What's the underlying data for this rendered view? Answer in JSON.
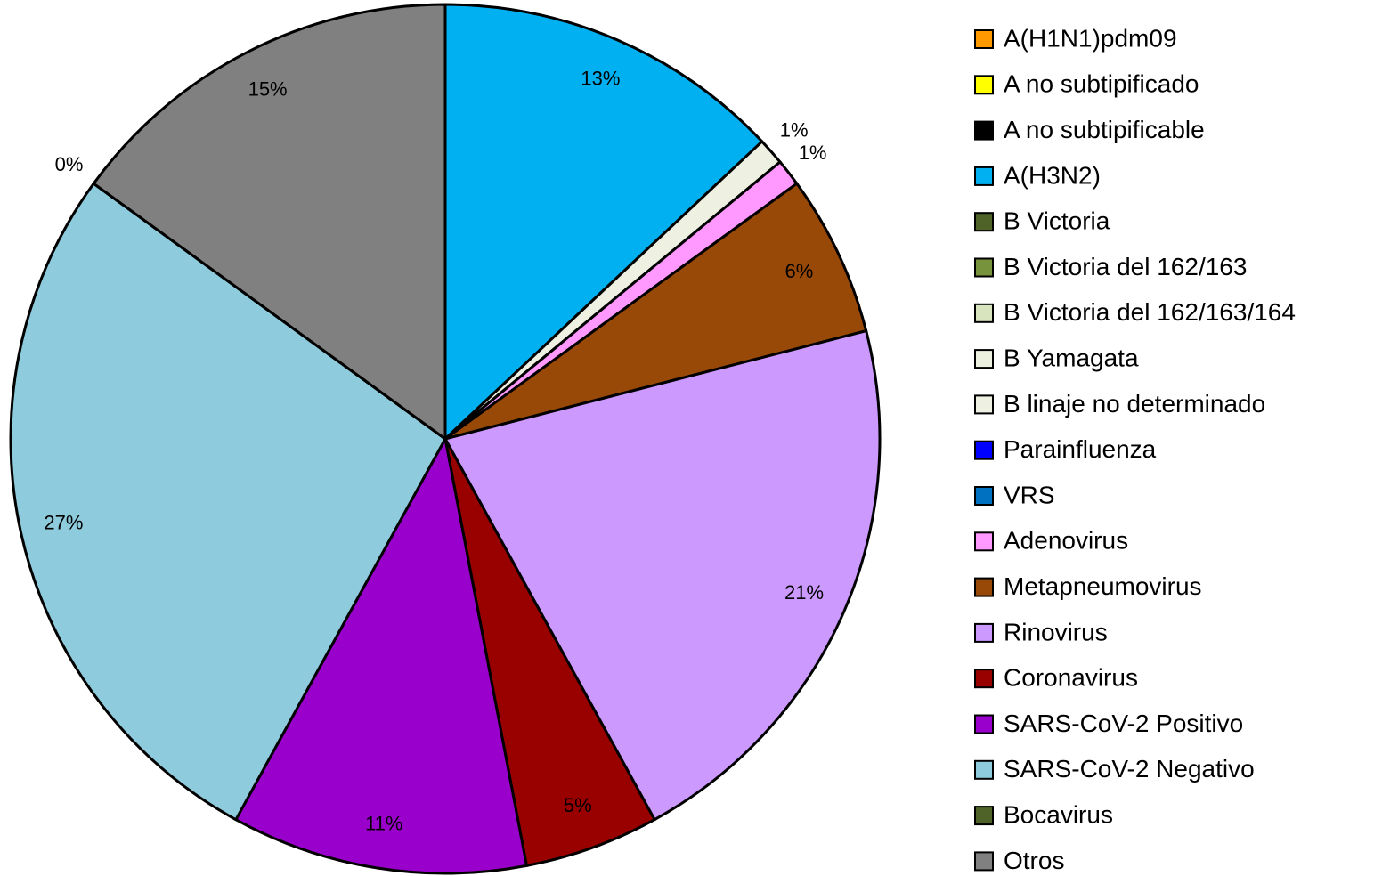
{
  "chart_data": {
    "type": "pie",
    "categories": [
      "A(H1N1)pdm09",
      "A no subtipificado",
      "A no subtipificable",
      "A(H3N2)",
      "B Victoria",
      "B Victoria del 162/163",
      "B Victoria del 162/163/164",
      "B Yamagata",
      "B linaje no determinado",
      "Parainfluenza",
      "VRS",
      "Adenovirus",
      "Metapneumovirus",
      "Rinovirus",
      "Coronavirus",
      "SARS-CoV-2 Positivo",
      "SARS-CoV-2 Negativo",
      "Bocavirus",
      "Otros"
    ],
    "values": [
      null,
      null,
      null,
      13,
      null,
      null,
      null,
      null,
      1,
      null,
      null,
      1,
      6,
      21,
      5,
      11,
      27,
      0,
      15
    ],
    "value_labels": [
      null,
      null,
      null,
      "13%",
      null,
      null,
      null,
      null,
      "1%",
      null,
      null,
      "1%",
      "6%",
      "21%",
      "5%",
      "11%",
      "27%",
      "0%",
      "15%"
    ],
    "colors": [
      "#ff9900",
      "#ffff00",
      "#000000",
      "#00b0f0",
      "#4f6228",
      "#77933c",
      "#d7e4bd",
      "#ebf1de",
      "#eef0e2",
      "#0000ff",
      "#0070c0",
      "#ff99ff",
      "#984807",
      "#cc99ff",
      "#990000",
      "#9900cc",
      "#8ecbdc",
      "#4f6228",
      "#808080"
    ]
  }
}
